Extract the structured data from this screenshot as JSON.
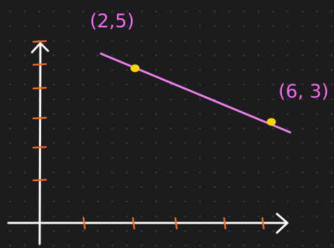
{
  "whiteboard": {
    "background": "#1c1c1e",
    "grid_dot_color": "#4a4a4f",
    "axis_color": "#ffffff",
    "tick_color": "#f06a1e",
    "line_color": "#ee80ee",
    "point_color": "#ffd400",
    "label_color": "#f36cf0"
  },
  "diagram": {
    "axes": {
      "x_ticks": 5,
      "y_ticks": 5
    },
    "line": {
      "from": "upper-left",
      "to": "lower-right"
    },
    "points": [
      {
        "label": "(2,5)"
      },
      {
        "label": "(6, 3)"
      }
    ]
  }
}
